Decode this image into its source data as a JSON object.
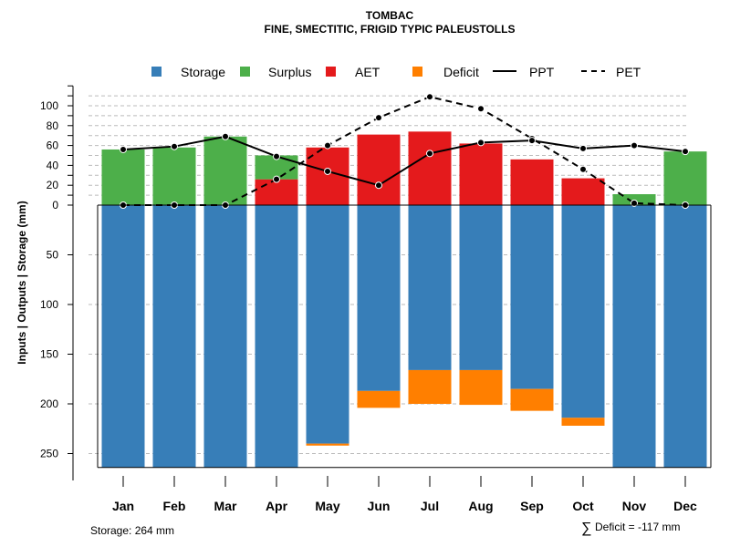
{
  "chart_data": {
    "type": "bar",
    "title": "TOMBAC",
    "subtitle": "FINE, SMECTITIC, FRIGID TYPIC PALEUSTOLLS",
    "ylabel": "Inputs | Outputs | Storage    (mm)",
    "categories": [
      "Jan",
      "Feb",
      "Mar",
      "Apr",
      "May",
      "Jun",
      "Jul",
      "Aug",
      "Sep",
      "Oct",
      "Nov",
      "Dec"
    ],
    "y_positive_ticks": [
      0,
      20,
      40,
      60,
      80,
      100
    ],
    "y_negative_ticks": [
      50,
      100,
      150,
      200,
      250
    ],
    "ylim_top": 110,
    "ylim_bottom": -264,
    "legend": [
      "Storage",
      "Surplus",
      "AET",
      "Deficit",
      "PPT",
      "PET"
    ],
    "colors": {
      "storage": "#377eb8",
      "surplus": "#4daf4a",
      "aet": "#e41a1c",
      "deficit": "#ff7f00",
      "line": "#000000",
      "grid": "#bbbbbb"
    },
    "series": [
      {
        "name": "Surplus",
        "values": [
          56,
          58,
          69,
          24,
          0,
          0,
          0,
          0,
          0,
          0,
          11,
          54
        ]
      },
      {
        "name": "AET",
        "values": [
          0,
          0,
          0,
          26,
          58,
          71,
          74,
          62,
          46,
          27,
          0,
          0
        ]
      },
      {
        "name": "Storage",
        "values": [
          264,
          264,
          264,
          264,
          240,
          187,
          166,
          166,
          185,
          214,
          264,
          264
        ]
      },
      {
        "name": "Deficit",
        "values": [
          0,
          0,
          0,
          0,
          2,
          17,
          34,
          35,
          22,
          8,
          0,
          0
        ]
      },
      {
        "name": "PPT",
        "values": [
          56,
          59,
          69,
          49,
          34,
          20,
          52,
          63,
          65,
          57,
          60,
          54
        ]
      },
      {
        "name": "PET",
        "values": [
          0,
          0,
          0,
          26,
          60,
          88,
          109,
          97,
          67,
          36,
          2,
          0
        ]
      }
    ],
    "footer_storage": "Storage: 264 mm",
    "footer_deficit_symbol": "∑",
    "footer_deficit": "Deficit = -117 mm"
  }
}
